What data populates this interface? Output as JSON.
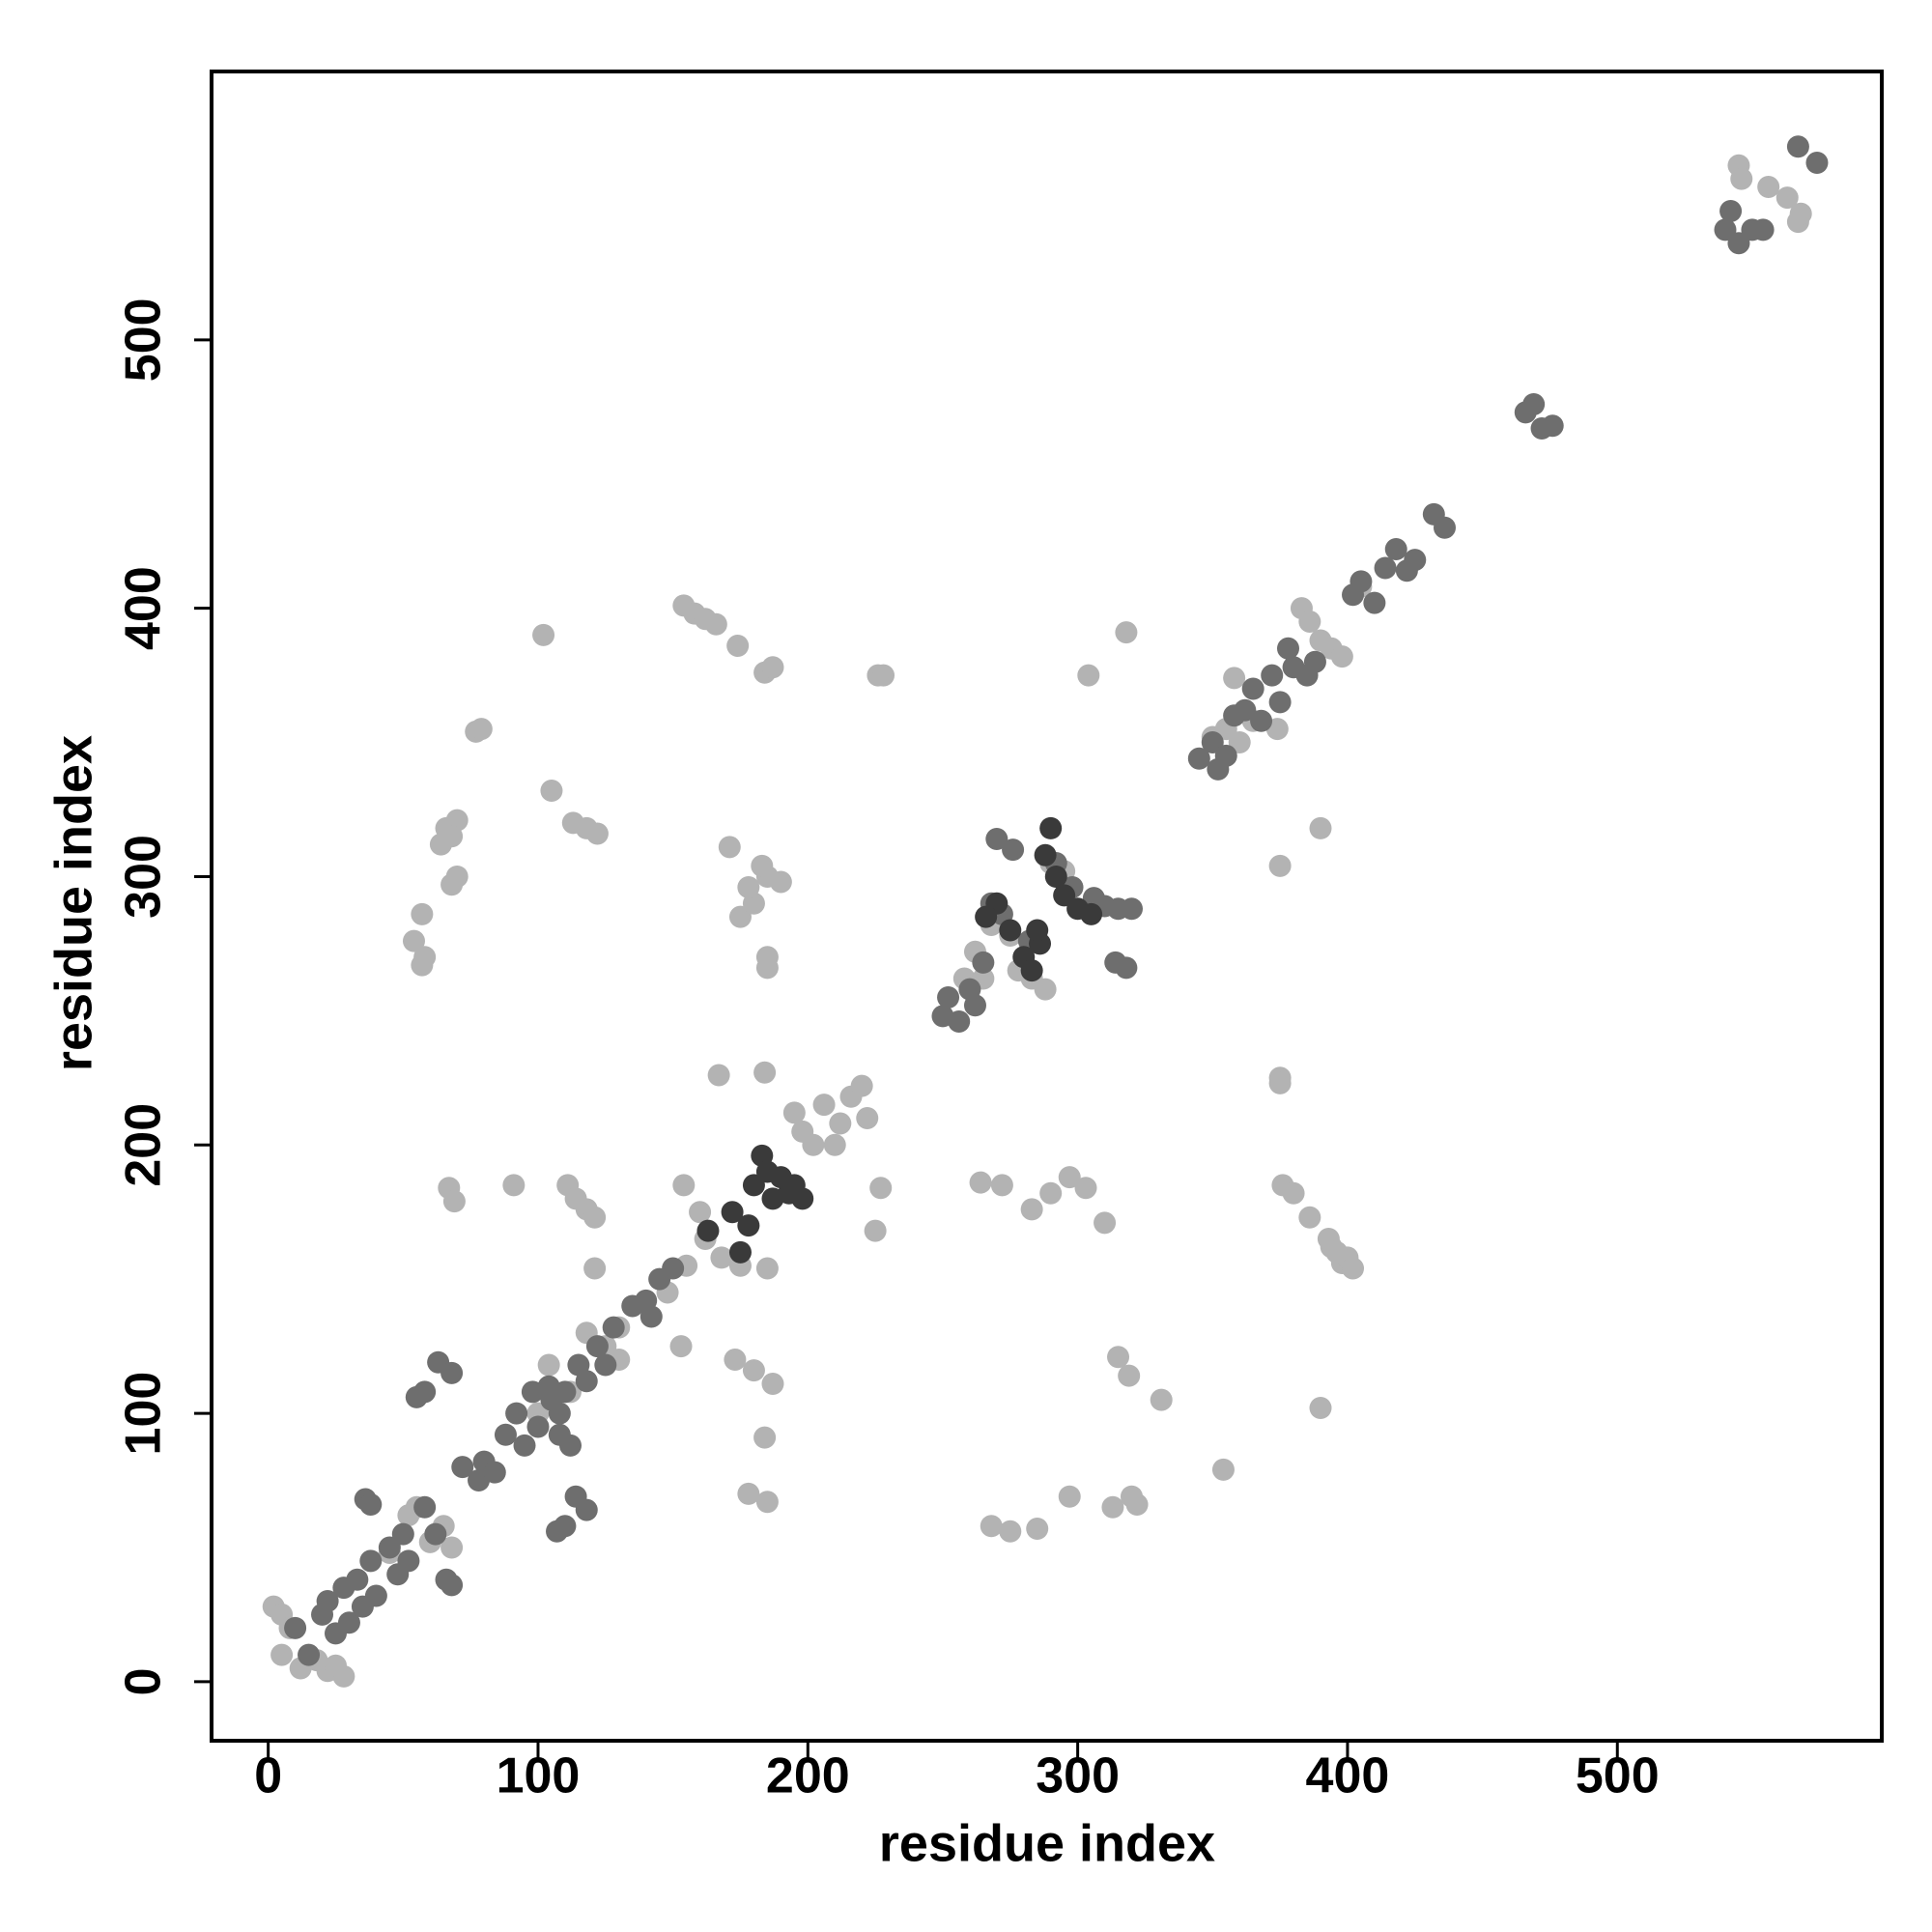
{
  "chart_data": {
    "type": "scatter",
    "x_label": "residue index",
    "y_label": "residue index",
    "xlim": [
      -21,
      598
    ],
    "ylim": [
      -22,
      600
    ],
    "xticks": [
      0,
      100,
      200,
      300,
      400,
      500
    ],
    "yticks": [
      0,
      100,
      200,
      300,
      400,
      500
    ],
    "grid": false,
    "series": [
      {
        "color": "#b3b3b3",
        "x": [
          2,
          5,
          8,
          5,
          12,
          18,
          22,
          28,
          25,
          45,
          55,
          60,
          65,
          68,
          52,
          100,
          104,
          112,
          118,
          125,
          130,
          130,
          148,
          155,
          160,
          162,
          168,
          175,
          195,
          198,
          202,
          206,
          210,
          212,
          216,
          220,
          222,
          258,
          262,
          265,
          268,
          275,
          278,
          283,
          288,
          290,
          295,
          350,
          355,
          358,
          360,
          365,
          374,
          383,
          386,
          390,
          394,
          398,
          405,
          545,
          546,
          556,
          563,
          567,
          568,
          102,
          390,
          154,
          158,
          162,
          166,
          398,
          400,
          402,
          394,
          174,
          184,
          187,
          226,
          228,
          77,
          79,
          105,
          64,
          66,
          70,
          68,
          113,
          118,
          122,
          68,
          70,
          54,
          58,
          57,
          57,
          171,
          175,
          180,
          185,
          190,
          178,
          183,
          185,
          185,
          167,
          184,
          67,
          69,
          91,
          111,
          114,
          118,
          121,
          154,
          227,
          225,
          185,
          121,
          153,
          173,
          180,
          187,
          184,
          178,
          185,
          304,
          318,
          375,
          390,
          375,
          375,
          376,
          380,
          386,
          393,
          396,
          264,
          272,
          283,
          290,
          297,
          303,
          310,
          315,
          319,
          331,
          354,
          268,
          275,
          285,
          297,
          313,
          320,
          322
        ],
        "y": [
          28,
          25,
          20,
          10,
          5,
          8,
          4,
          2,
          6,
          48,
          65,
          52,
          58,
          50,
          62,
          100,
          118,
          108,
          130,
          125,
          132,
          120,
          145,
          155,
          175,
          165,
          158,
          155,
          212,
          205,
          200,
          215,
          200,
          208,
          218,
          222,
          210,
          262,
          272,
          262,
          282,
          278,
          265,
          262,
          258,
          305,
          302,
          352,
          355,
          374,
          350,
          358,
          355,
          400,
          395,
          388,
          385,
          382,
          408,
          565,
          560,
          557,
          553,
          544,
          547,
          390,
          102,
          401,
          398,
          396,
          394,
          156,
          158,
          154,
          162,
          386,
          376,
          378,
          375,
          375,
          354,
          355,
          332,
          312,
          318,
          321,
          315,
          320,
          318,
          316,
          297,
          300,
          276,
          270,
          267,
          286,
          311,
          285,
          290,
          300,
          298,
          296,
          304,
          270,
          266,
          226,
          227,
          184,
          179,
          185,
          185,
          180,
          176,
          173,
          185,
          184,
          168,
          154,
          154,
          125,
          120,
          116,
          111,
          91,
          70,
          67,
          375,
          391,
          304,
          318,
          225,
          223,
          185,
          182,
          173,
          165,
          160,
          186,
          185,
          176,
          182,
          188,
          184,
          171,
          121,
          114,
          105,
          79,
          58,
          56,
          57,
          69,
          65,
          69,
          66
        ]
      },
      {
        "color": "#6e6e6e",
        "x": [
          10,
          15,
          20,
          22,
          25,
          28,
          30,
          33,
          35,
          38,
          40,
          45,
          48,
          50,
          52,
          36,
          38,
          68,
          66,
          58,
          62,
          72,
          78,
          80,
          84,
          88,
          92,
          95,
          98,
          100,
          104,
          108,
          112,
          108,
          115,
          118,
          122,
          125,
          128,
          135,
          140,
          142,
          150,
          145,
          105,
          110,
          250,
          252,
          256,
          260,
          262,
          265,
          268,
          272,
          270,
          276,
          282,
          292,
          298,
          306,
          310,
          315,
          320,
          314,
          318,
          345,
          350,
          352,
          355,
          358,
          362,
          365,
          368,
          372,
          375,
          378,
          380,
          385,
          388,
          402,
          405,
          410,
          414,
          418,
          422,
          425,
          432,
          436,
          466,
          469,
          472,
          476,
          540,
          542,
          545,
          550,
          554,
          567,
          574,
          55,
          58,
          63,
          68,
          107,
          110,
          118,
          114
        ],
        "y": [
          20,
          10,
          25,
          30,
          18,
          35,
          22,
          38,
          28,
          45,
          32,
          50,
          40,
          55,
          45,
          68,
          66,
          36,
          38,
          65,
          55,
          80,
          75,
          82,
          78,
          92,
          100,
          88,
          108,
          95,
          110,
          100,
          88,
          92,
          118,
          112,
          125,
          118,
          132,
          140,
          142,
          136,
          154,
          150,
          105,
          108,
          248,
          255,
          246,
          258,
          252,
          268,
          290,
          286,
          314,
          310,
          276,
          305,
          296,
          292,
          289,
          288,
          288,
          268,
          266,
          344,
          350,
          340,
          345,
          360,
          362,
          370,
          358,
          375,
          365,
          385,
          378,
          375,
          380,
          405,
          410,
          402,
          415,
          422,
          414,
          418,
          435,
          430,
          473,
          476,
          467,
          468,
          541,
          548,
          536,
          541,
          541,
          572,
          566,
          106,
          108,
          119,
          115,
          56,
          58,
          64,
          69
        ]
      },
      {
        "color": "#3a3a3a",
        "x": [
          172,
          175,
          178,
          180,
          183,
          185,
          187,
          190,
          193,
          195,
          198,
          163,
          280,
          283,
          286,
          288,
          290,
          292,
          295,
          300,
          305,
          270,
          266,
          275,
          285
        ],
        "y": [
          175,
          160,
          170,
          185,
          196,
          190,
          180,
          188,
          182,
          185,
          180,
          168,
          270,
          265,
          275,
          308,
          318,
          300,
          293,
          288,
          286,
          290,
          285,
          280,
          280
        ]
      }
    ]
  }
}
